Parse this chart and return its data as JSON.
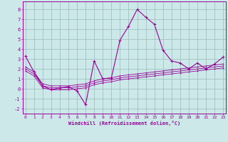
{
  "xlabel": "Windchill (Refroidissement éolien,°C)",
  "x_values": [
    0,
    1,
    2,
    3,
    4,
    5,
    6,
    7,
    8,
    9,
    10,
    11,
    12,
    13,
    14,
    15,
    16,
    17,
    18,
    19,
    20,
    21,
    22,
    23
  ],
  "main_line": [
    3.3,
    1.7,
    0.3,
    -0.1,
    0.1,
    0.2,
    -0.2,
    -1.6,
    2.8,
    1.0,
    1.1,
    4.9,
    6.3,
    8.0,
    7.2,
    6.5,
    3.9,
    2.8,
    2.6,
    2.0,
    2.6,
    2.0,
    2.5,
    3.2
  ],
  "ref_line1": [
    2.2,
    1.7,
    0.5,
    0.3,
    0.3,
    0.3,
    0.4,
    0.5,
    0.8,
    1.0,
    1.1,
    1.3,
    1.4,
    1.5,
    1.6,
    1.7,
    1.8,
    1.9,
    2.0,
    2.1,
    2.2,
    2.3,
    2.4,
    2.5
  ],
  "ref_line2": [
    2.0,
    1.5,
    0.3,
    0.1,
    0.1,
    0.1,
    0.2,
    0.3,
    0.6,
    0.8,
    0.9,
    1.1,
    1.2,
    1.3,
    1.4,
    1.5,
    1.6,
    1.7,
    1.8,
    1.9,
    2.0,
    2.1,
    2.2,
    2.3
  ],
  "ref_line3": [
    1.8,
    1.3,
    0.1,
    -0.1,
    -0.1,
    -0.1,
    0.0,
    0.1,
    0.4,
    0.6,
    0.7,
    0.9,
    1.0,
    1.1,
    1.2,
    1.3,
    1.4,
    1.5,
    1.6,
    1.7,
    1.8,
    1.9,
    2.0,
    2.1
  ],
  "line_color": "#990099",
  "bg_color": "#cce8e8",
  "grid_color": "#99bbbb",
  "ylim": [
    -2.5,
    8.8
  ],
  "yticks": [
    -2,
    -1,
    0,
    1,
    2,
    3,
    4,
    5,
    6,
    7,
    8
  ],
  "xlim": [
    -0.3,
    23.3
  ],
  "tick_fontsize": 4.5,
  "label_fontsize": 5.0
}
